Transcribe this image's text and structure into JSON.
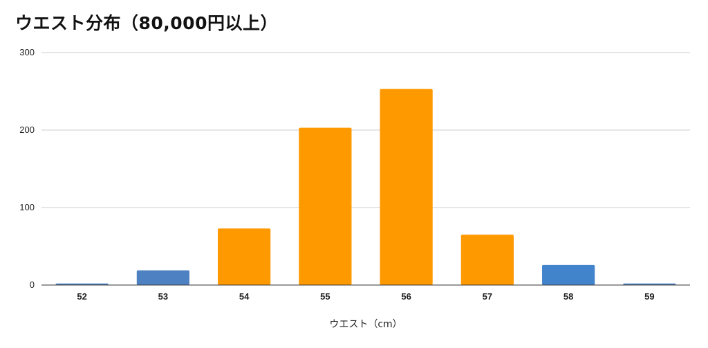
{
  "chart_data": {
    "type": "bar",
    "title": "ウエスト分布（80,000円以上）",
    "xlabel": "ウエスト（cm）",
    "ylabel": "",
    "ylim": [
      0,
      300
    ],
    "yticks": [
      0,
      100,
      200,
      300
    ],
    "grid": true,
    "categories": [
      "52",
      "53",
      "54",
      "55",
      "56",
      "57",
      "58",
      "59"
    ],
    "values": [
      2,
      19,
      73,
      203,
      253,
      65,
      26,
      2
    ],
    "colors": [
      "#4e81c2",
      "#4e81c2",
      "#ff9900",
      "#ff9900",
      "#ff9900",
      "#ff9900",
      "#4284cc",
      "#4e81c2"
    ]
  }
}
